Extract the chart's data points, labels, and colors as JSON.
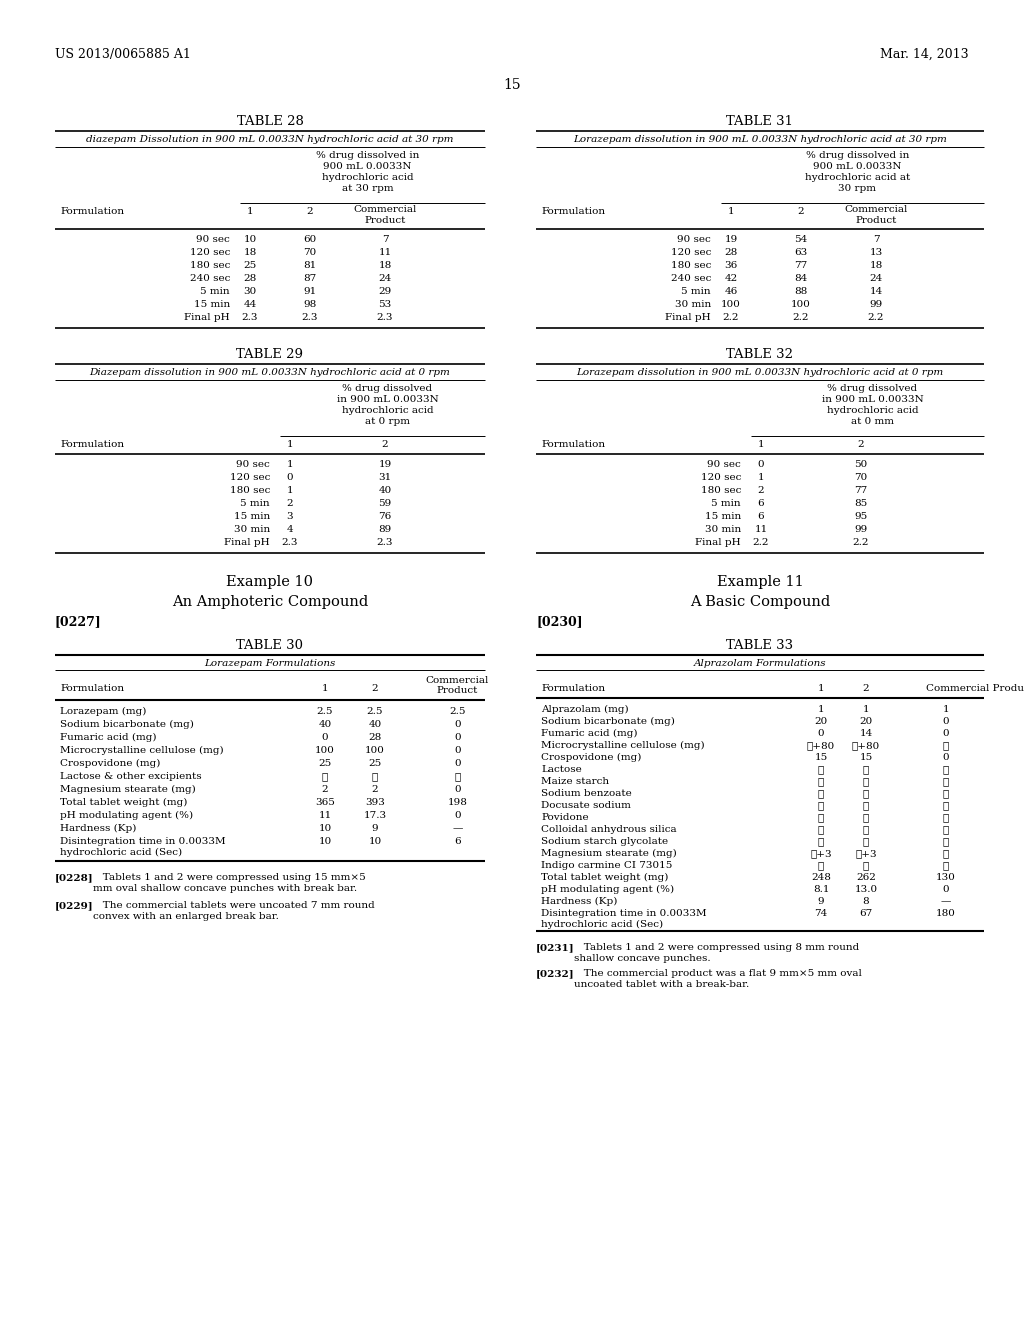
{
  "bg_color": "#ffffff",
  "header_left": "US 2013/0065885 A1",
  "header_right": "Mar. 14, 2013",
  "page_number": "15",
  "table28": {
    "title": "TABLE 28",
    "subtitle": "diazepam Dissolution in 900 mL 0.0033N hydrochloric acid at 30 rpm",
    "span_header": "% drug dissolved in\n900 mL 0.0033N\nhydrochloric acid\nat 30 rpm",
    "rows": [
      [
        "Formulation",
        "1",
        "2",
        "Commercial\nProduct"
      ],
      [
        "90 sec",
        "10",
        "60",
        "7"
      ],
      [
        "120 sec",
        "18",
        "70",
        "11"
      ],
      [
        "180 sec",
        "25",
        "81",
        "18"
      ],
      [
        "240 sec",
        "28",
        "87",
        "24"
      ],
      [
        "5 min",
        "30",
        "91",
        "29"
      ],
      [
        "15 min",
        "44",
        "98",
        "53"
      ],
      [
        "Final pH",
        "2.3",
        "2.3",
        "2.3"
      ]
    ]
  },
  "table29": {
    "title": "TABLE 29",
    "subtitle": "Diazepam dissolution in 900 mL 0.0033N hydrochloric acid at 0 rpm",
    "span_header": "% drug dissolved\nin 900 mL 0.0033N\nhydrochloric acid\nat 0 rpm",
    "rows": [
      [
        "Formulation",
        "1",
        "2"
      ],
      [
        "90 sec",
        "1",
        "19"
      ],
      [
        "120 sec",
        "0",
        "31"
      ],
      [
        "180 sec",
        "1",
        "40"
      ],
      [
        "5 min",
        "2",
        "59"
      ],
      [
        "15 min",
        "3",
        "76"
      ],
      [
        "30 min",
        "4",
        "89"
      ],
      [
        "Final pH",
        "2.3",
        "2.3"
      ]
    ]
  },
  "table30": {
    "title": "TABLE 30",
    "subtitle": "Lorazepam Formulations",
    "rows": [
      [
        "Formulation",
        "1",
        "2",
        "Commercial\nProduct"
      ],
      [
        "Lorazepam (mg)",
        "2.5",
        "2.5",
        "2.5"
      ],
      [
        "Sodium bicarbonate (mg)",
        "40",
        "40",
        "0"
      ],
      [
        "Fumaric acid (mg)",
        "0",
        "28",
        "0"
      ],
      [
        "Microcrystalline cellulose (mg)",
        "100",
        "100",
        "0"
      ],
      [
        "Crospovidone (mg)",
        "25",
        "25",
        "0"
      ],
      [
        "Lactose & other excipients",
        "✓",
        "✓",
        "✓"
      ],
      [
        "Magnesium stearate (mg)",
        "2",
        "2",
        "0"
      ],
      [
        "Total tablet weight (mg)",
        "365",
        "393",
        "198"
      ],
      [
        "pH modulating agent (%)",
        "11",
        "17.3",
        "0"
      ],
      [
        "Hardness (Kp)",
        "10",
        "9",
        "—"
      ],
      [
        "Disintegration time in 0.0033M\nhydrochloric acid (Sec)",
        "10",
        "10",
        "6"
      ]
    ]
  },
  "table31": {
    "title": "TABLE 31",
    "subtitle": "Lorazepam dissolution in 900 mL 0.0033N hydrochloric acid at 30 rpm",
    "span_header": "% drug dissolved in\n900 mL 0.0033N\nhydrochloric acid at\n30 rpm",
    "rows": [
      [
        "Formulation",
        "1",
        "2",
        "Commercial\nProduct"
      ],
      [
        "90 sec",
        "19",
        "54",
        "7"
      ],
      [
        "120 sec",
        "28",
        "63",
        "13"
      ],
      [
        "180 sec",
        "36",
        "77",
        "18"
      ],
      [
        "240 sec",
        "42",
        "84",
        "24"
      ],
      [
        "5 min",
        "46",
        "88",
        "14"
      ],
      [
        "30 min",
        "100",
        "100",
        "99"
      ],
      [
        "Final pH",
        "2.2",
        "2.2",
        "2.2"
      ]
    ]
  },
  "table32": {
    "title": "TABLE 32",
    "subtitle": "Lorazepam dissolution in 900 mL 0.0033N hydrochloric acid at 0 rpm",
    "span_header": "% drug dissolved\nin 900 mL 0.0033N\nhydrochloric acid\nat 0 mm",
    "rows": [
      [
        "Formulation",
        "1",
        "2"
      ],
      [
        "90 sec",
        "0",
        "50"
      ],
      [
        "120 sec",
        "1",
        "70"
      ],
      [
        "180 sec",
        "2",
        "77"
      ],
      [
        "5 min",
        "6",
        "85"
      ],
      [
        "15 min",
        "6",
        "95"
      ],
      [
        "30 min",
        "11",
        "99"
      ],
      [
        "Final pH",
        "2.2",
        "2.2"
      ]
    ]
  },
  "table33": {
    "title": "TABLE 33",
    "subtitle": "Alprazolam Formulations",
    "rows": [
      [
        "Formulation",
        "1",
        "2",
        "Commercial Product"
      ],
      [
        "Alprazolam (mg)",
        "1",
        "1",
        "1"
      ],
      [
        "Sodium bicarbonate (mg)",
        "20",
        "20",
        "0"
      ],
      [
        "Fumaric acid (mg)",
        "0",
        "14",
        "0"
      ],
      [
        "Microcrystalline cellulose (mg)",
        "✓+80",
        "✓+80",
        "✓"
      ],
      [
        "Crospovidone (mg)",
        "15",
        "15",
        "0"
      ],
      [
        "Lactose",
        "✓",
        "✓",
        "✓"
      ],
      [
        "Maize starch",
        "✓",
        "✓",
        "✓"
      ],
      [
        "Sodium benzoate",
        "✓",
        "✓",
        "✓"
      ],
      [
        "Docusate sodium",
        "✓",
        "✓",
        "✓"
      ],
      [
        "Povidone",
        "✓",
        "✓",
        "✓"
      ],
      [
        "Colloidal anhydrous silica",
        "✓",
        "✓",
        "✓"
      ],
      [
        "Sodium starch glycolate",
        "✓",
        "✓",
        "✓"
      ],
      [
        "Magnesium stearate (mg)",
        "✓+3",
        "✓+3",
        "✓"
      ],
      [
        "Indigo carmine CI 73015",
        "✓",
        "✓",
        "✓"
      ],
      [
        "Total tablet weight (mg)",
        "248",
        "262",
        "130"
      ],
      [
        "pH modulating agent (%)",
        "8.1",
        "13.0",
        "0"
      ],
      [
        "Hardness (Kp)",
        "9",
        "8",
        "—"
      ],
      [
        "Disintegration time in 0.0033M\nhydrochloric acid (Sec)",
        "74",
        "67",
        "180"
      ]
    ]
  },
  "ex10_title": "Example 10",
  "ex10_sub": "An Amphoteric Compound",
  "ex10_para": "[0227]",
  "ex11_title": "Example 11",
  "ex11_sub": "A Basic Compound",
  "ex11_para": "[0230]",
  "note228_label": "[0228]",
  "note228_text": "   Tablets 1 and 2 were compressed using 15 mm×5\nmm oval shallow concave punches with break bar.",
  "note229_label": "[0229]",
  "note229_text": "   The commercial tablets were uncoated 7 mm round\nconvex with an enlarged break bar.",
  "note231_label": "[0231]",
  "note231_text": "   Tablets 1 and 2 were compressed using 8 mm round\nshallow concave punches.",
  "note232_label": "[0232]",
  "note232_text": "   The commercial product was a flat 9 mm×5 mm oval\nuncoated tablet with a break-bar."
}
